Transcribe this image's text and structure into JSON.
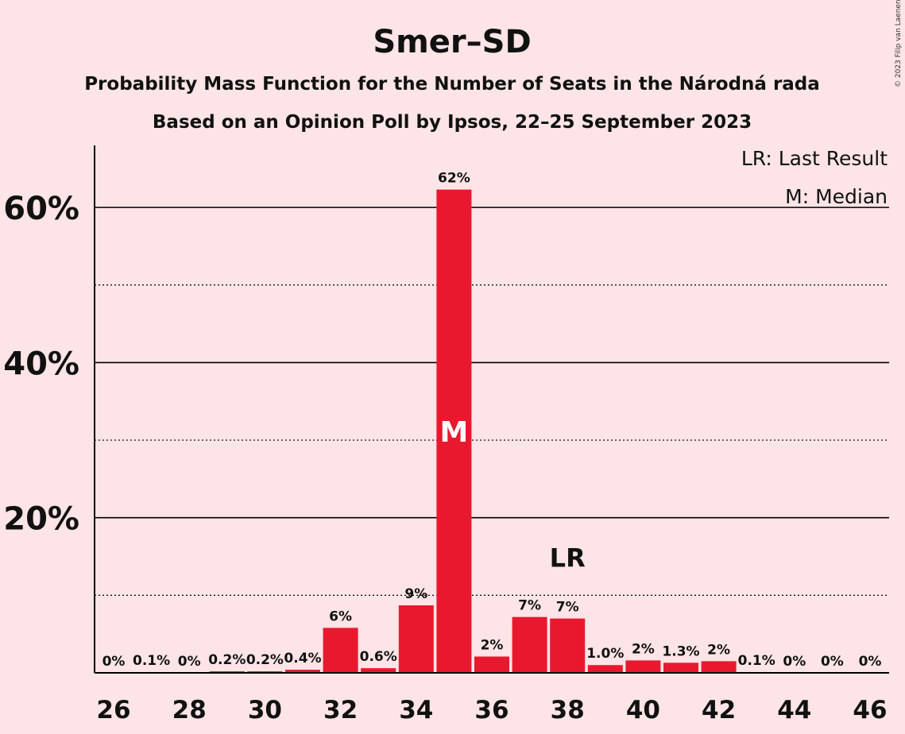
{
  "copyright": "© 2023 Filip van Laenen",
  "chart_data": {
    "type": "bar",
    "title": "Smer–SD",
    "subtitle": "Probability Mass Function for the Number of Seats in the Národná rada",
    "subtitle2": "Based on an Opinion Poll by Ipsos, 22–25 September 2023",
    "xlabel": "",
    "ylabel": "",
    "bar_color": "#e8192f",
    "x": [
      26,
      27,
      28,
      29,
      30,
      31,
      32,
      33,
      34,
      35,
      36,
      37,
      38,
      39,
      40,
      41,
      42,
      43,
      44,
      45,
      46
    ],
    "values": [
      0,
      0.1,
      0,
      0.2,
      0.2,
      0.4,
      5.8,
      0.6,
      8.7,
      62.3,
      2.1,
      7.2,
      7.0,
      1.0,
      1.6,
      1.3,
      1.5,
      0.1,
      0,
      0,
      0
    ],
    "value_labels": [
      "0%",
      "0.1%",
      "0%",
      "0.2%",
      "0.2%",
      "0.4%",
      "6%",
      "0.6%",
      "9%",
      "62%",
      "2%",
      "7%",
      "7%",
      "1.0%",
      "2%",
      "1.3%",
      "2%",
      "0.1%",
      "0%",
      "0%",
      "0%"
    ],
    "x_tick_labels": [
      "26",
      "28",
      "30",
      "32",
      "34",
      "36",
      "38",
      "40",
      "42",
      "44",
      "46"
    ],
    "y_ticks": [
      20,
      40,
      60
    ],
    "y_tick_labels": [
      "20%",
      "40%",
      "60%"
    ],
    "y_minor_ticks": [
      10,
      30,
      50
    ],
    "ylim": [
      0,
      68
    ],
    "grid": true,
    "median_seat": 35,
    "median_marker": "M",
    "last_result_seat": 38,
    "last_result_marker": "LR",
    "legend": {
      "placement": "top-right",
      "items": [
        "LR: Last Result",
        "M: Median"
      ]
    }
  }
}
